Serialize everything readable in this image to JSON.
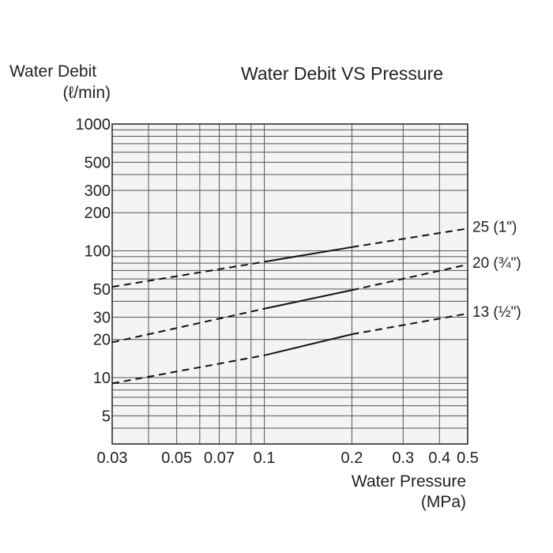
{
  "chart_data": {
    "type": "line",
    "title": "Water Debit VS Pressure",
    "ylabel": "Water Debit",
    "ylabel_unit": "(ℓ/min)",
    "xlabel": "Water Pressure",
    "xlabel_unit": "(MPa)",
    "x_scale": "log",
    "y_scale": "log",
    "xlim": [
      0.03,
      0.5
    ],
    "ylim": [
      3,
      1000
    ],
    "grid": true,
    "x_ticks": [
      {
        "value": 0.03,
        "label": "0.03"
      },
      {
        "value": 0.05,
        "label": "0.05"
      },
      {
        "value": 0.07,
        "label": "0.07"
      },
      {
        "value": 0.1,
        "label": "0.1"
      },
      {
        "value": 0.2,
        "label": "0.2"
      },
      {
        "value": 0.3,
        "label": "0.3"
      },
      {
        "value": 0.4,
        "label": "0.4"
      },
      {
        "value": 0.5,
        "label": "0.5"
      }
    ],
    "y_ticks": [
      {
        "value": 1000,
        "label": "1000"
      },
      {
        "value": 500,
        "label": "500"
      },
      {
        "value": 300,
        "label": "300"
      },
      {
        "value": 200,
        "label": "200"
      },
      {
        "value": 100,
        "label": "100"
      },
      {
        "value": 50,
        "label": "50"
      },
      {
        "value": 30,
        "label": "30"
      },
      {
        "value": 20,
        "label": "20"
      },
      {
        "value": 10,
        "label": "10"
      },
      {
        "value": 5,
        "label": "5"
      }
    ],
    "series": [
      {
        "name": "25 (1\")",
        "x": [
          0.03,
          0.1,
          0.2,
          0.5
        ],
        "y": [
          52,
          82,
          107,
          150
        ],
        "solid_range": [
          0.1,
          0.2
        ]
      },
      {
        "name": "20 (¾\")",
        "x": [
          0.03,
          0.1,
          0.2,
          0.5
        ],
        "y": [
          19,
          35,
          49,
          78
        ],
        "solid_range": [
          0.1,
          0.2
        ]
      },
      {
        "name": "13 (½\")",
        "x": [
          0.03,
          0.1,
          0.2,
          0.5
        ],
        "y": [
          9,
          15,
          22,
          32
        ],
        "solid_range": [
          0.1,
          0.2
        ]
      }
    ]
  }
}
